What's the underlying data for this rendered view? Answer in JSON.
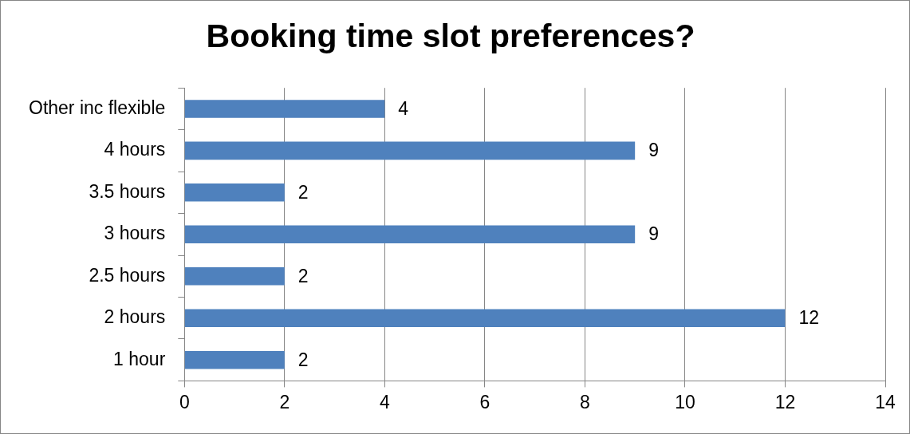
{
  "chart_data": {
    "type": "bar",
    "orientation": "horizontal",
    "title": "Booking time slot preferences?",
    "categories": [
      "Other inc flexible",
      "4 hours",
      "3.5 hours",
      "3 hours",
      "2.5 hours",
      "2 hours",
      "1 hour"
    ],
    "values": [
      4,
      9,
      2,
      9,
      2,
      12,
      2
    ],
    "color": "#4f81bd",
    "xlim": [
      0,
      14
    ],
    "xticks": [
      0,
      2,
      4,
      6,
      8,
      10,
      12,
      14
    ],
    "grid": "x",
    "data_labels": true
  }
}
